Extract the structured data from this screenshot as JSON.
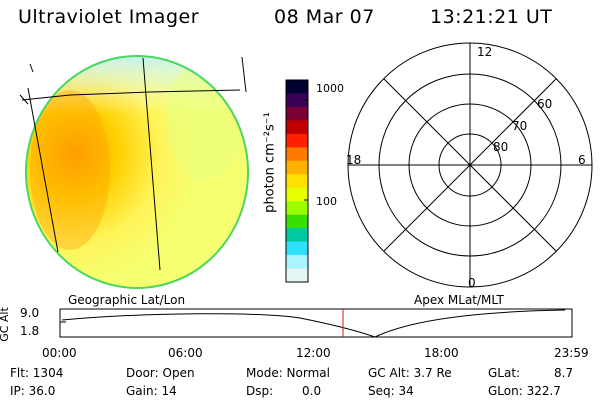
{
  "header": {
    "instrument": "Ultraviolet Imager",
    "date": "08 Mar 07",
    "time": "13:21:21 UT"
  },
  "colorbar": {
    "label": "photon cm⁻²s⁻¹",
    "ticks": [
      "1000",
      "100"
    ],
    "colors": [
      "#000033",
      "#3a0055",
      "#7a0033",
      "#c00000",
      "#ff2000",
      "#ff7a00",
      "#ffb300",
      "#ffe000",
      "#e8ff00",
      "#9bff00",
      "#38e000",
      "#00c8a0",
      "#30e0ff",
      "#a8f4ff",
      "#e6f6f6"
    ]
  },
  "polar": {
    "mlt_labels": [
      "12",
      "18",
      "6",
      "0"
    ],
    "lat_labels": [
      "60",
      "70",
      "80"
    ]
  },
  "altitude_plot": {
    "left_title": "Geographic Lat/Lon",
    "right_title": "Apex MLat/MLT",
    "y_label": "GC Alt",
    "y_ticks": [
      "9.0",
      "1.8"
    ],
    "x_ticks": [
      "00:00",
      "06:00",
      "12:00",
      "18:00",
      "23:59"
    ],
    "marker_color": "#c02020"
  },
  "status": {
    "flt": "Flt: 1304",
    "ip": "IP: 36.0",
    "door": "Door: Open",
    "gain": "Gain: 14",
    "mode": "Mode: Normal",
    "dsp_label": "Dsp:",
    "dsp_value": "0.0",
    "gc_alt": "GC Alt: 3.7 Re",
    "seq": "Seq: 34",
    "glat_label": "GLat:",
    "glat_value": "8.7",
    "glon": "GLon: 322.7"
  }
}
